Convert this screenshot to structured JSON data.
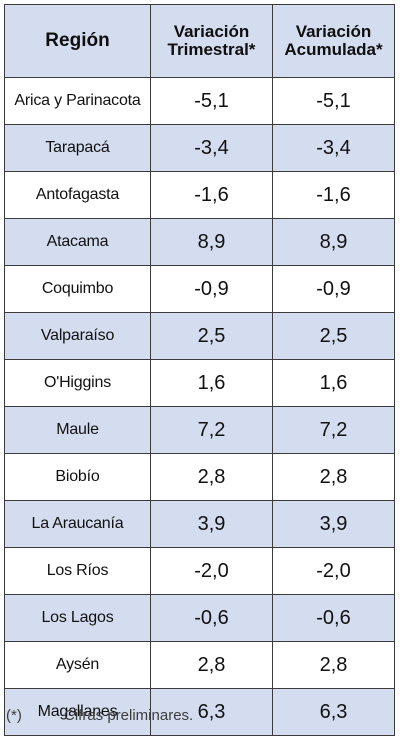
{
  "table": {
    "headers": {
      "region": "Región",
      "trimestral": [
        "Variación",
        "Trimestral*"
      ],
      "acumulada": [
        "Variación",
        "Acumulada*"
      ]
    },
    "rows": [
      {
        "region": "Arica y Parinacota",
        "trimestral": "-5,1",
        "acumulada": "-5,1"
      },
      {
        "region": "Tarapacá",
        "trimestral": "-3,4",
        "acumulada": "-3,4"
      },
      {
        "region": "Antofagasta",
        "trimestral": "-1,6",
        "acumulada": "-1,6"
      },
      {
        "region": "Atacama",
        "trimestral": "8,9",
        "acumulada": "8,9"
      },
      {
        "region": "Coquimbo",
        "trimestral": "-0,9",
        "acumulada": "-0,9"
      },
      {
        "region": "Valparaíso",
        "trimestral": "2,5",
        "acumulada": "2,5"
      },
      {
        "region": "O'Higgins",
        "trimestral": "1,6",
        "acumulada": "1,6"
      },
      {
        "region": "Maule",
        "trimestral": "7,2",
        "acumulada": "7,2"
      },
      {
        "region": "Biobío",
        "trimestral": "2,8",
        "acumulada": "2,8"
      },
      {
        "region": "La Araucanía",
        "trimestral": "3,9",
        "acumulada": "3,9"
      },
      {
        "region": "Los Ríos",
        "trimestral": "-2,0",
        "acumulada": "-2,0"
      },
      {
        "region": "Los Lagos",
        "trimestral": "-0,6",
        "acumulada": "-0,6"
      },
      {
        "region": "Aysén",
        "trimestral": "2,8",
        "acumulada": "2,8"
      },
      {
        "region": "Magallanes",
        "trimestral": "6,3",
        "acumulada": "6,3"
      }
    ]
  },
  "footnote": {
    "mark": "(*)",
    "text": "Cifras preliminares."
  },
  "colors": {
    "header_bg": "#d4dcef",
    "stripe_bg": "#d4dcef",
    "border": "#3a3a3a"
  }
}
